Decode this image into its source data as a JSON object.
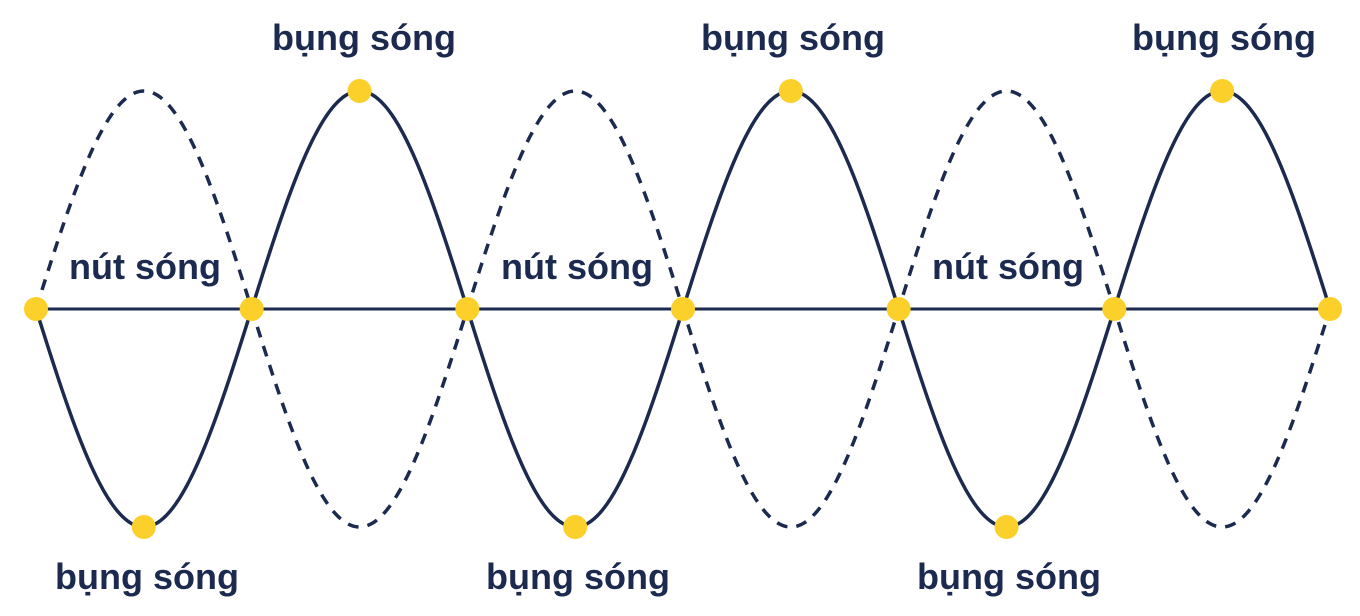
{
  "labels": {
    "antinode_label": "bụng sóng",
    "node_label": "nút sóng"
  },
  "colors": {
    "wave_line": "#1b2a4e",
    "axis_line": "#1b2a4e",
    "marker": "#fcd02b",
    "label_text": "#1b2a4e",
    "background": "#ffffff"
  },
  "wave": {
    "half_wavelength_count": 6,
    "node_count": 7,
    "antinode_count": 6,
    "solid_phase_first_loop": "down",
    "dashed_phase_first_loop": "up"
  }
}
